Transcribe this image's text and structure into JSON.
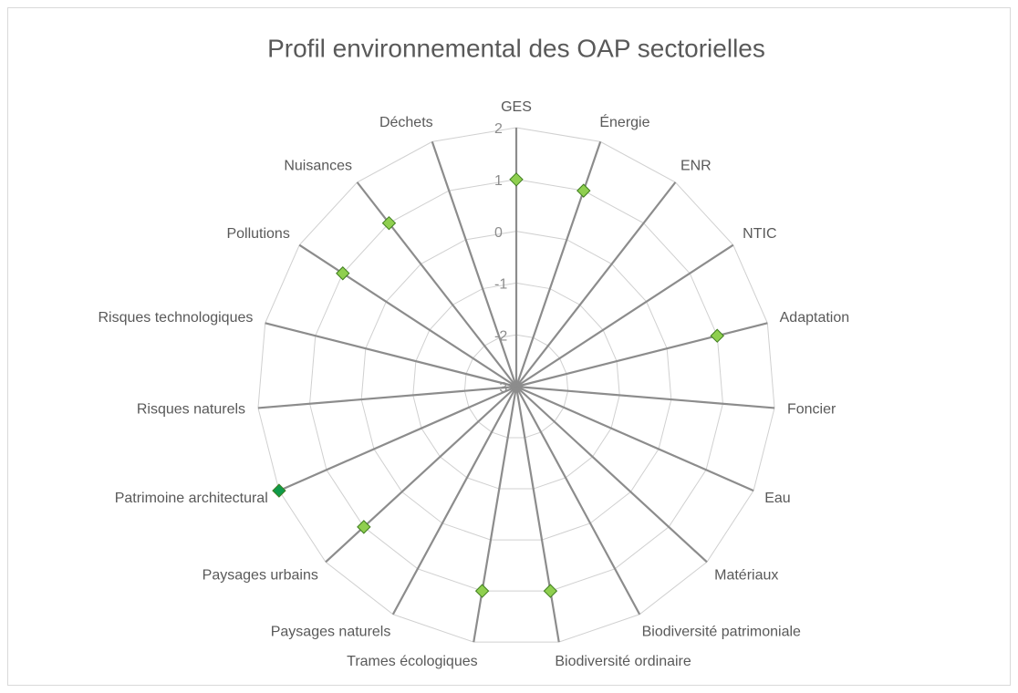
{
  "chart_data": {
    "type": "radar",
    "title": "Profil environnemental des OAP sectorielles",
    "categories": [
      "GES",
      "Énergie",
      "ENR",
      "NTIC",
      "Adaptation",
      "Foncier",
      "Eau",
      "Matériaux",
      "Biodiversité patrimoniale",
      "Biodiversité ordinaire",
      "Trames écologiques",
      "Paysages naturels",
      "Paysages urbains",
      "Patrimoine architectural",
      "Risques naturels",
      "Risques technologiques",
      "Pollutions",
      "Nuisances",
      "Déchets"
    ],
    "values": [
      1,
      1,
      null,
      null,
      1,
      null,
      null,
      null,
      null,
      1,
      1,
      null,
      1,
      2,
      null,
      null,
      1,
      1,
      null
    ],
    "point_colors": [
      "#8fcf4f",
      "#8fcf4f",
      "#8fcf4f",
      "#8fcf4f",
      "#8fcf4f",
      "#8fcf4f",
      "#8fcf4f",
      "#8fcf4f",
      "#8fcf4f",
      "#8fcf4f",
      "#8fcf4f",
      "#8fcf4f",
      "#8fcf4f",
      "#0f9a4a",
      "#8fcf4f",
      "#8fcf4f",
      "#8fcf4f",
      "#8fcf4f",
      "#8fcf4f"
    ],
    "ylim": [
      -3,
      2
    ],
    "yticks": [
      -3,
      -2,
      -1,
      0,
      1,
      2
    ],
    "grid": true
  }
}
